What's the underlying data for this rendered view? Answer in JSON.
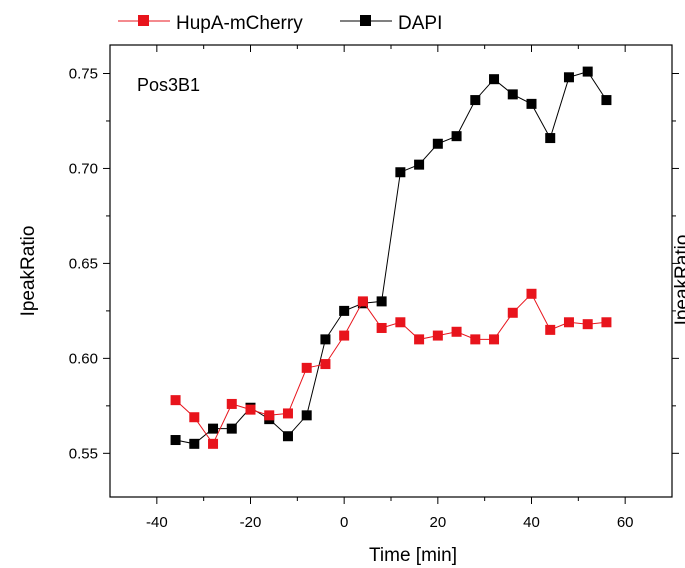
{
  "chart_data": {
    "type": "line",
    "title": "",
    "annotation": "Pos3B1",
    "xlabel": "Time [min]",
    "ylabel": "IpeakRatio",
    "right_ylabel_partial": "IpeakRatio",
    "xlim": [
      -50,
      70
    ],
    "ylim": [
      0.527,
      0.765
    ],
    "xticks": [
      -40,
      -20,
      0,
      20,
      40,
      60
    ],
    "xtick_labels": [
      "-40",
      "-20",
      "0",
      "20",
      "40",
      "60"
    ],
    "yticks": [
      0.55,
      0.6,
      0.65,
      0.7,
      0.75
    ],
    "ytick_labels": [
      "0.55",
      "0.60",
      "0.65",
      "0.70",
      "0.75"
    ],
    "grid": false,
    "legend_position": "top",
    "x": [
      -36,
      -32,
      -28,
      -24,
      -20,
      -16,
      -12,
      -8,
      -4,
      0,
      4,
      8,
      12,
      16,
      20,
      24,
      28,
      32,
      36,
      40,
      44,
      48,
      52,
      56
    ],
    "series": [
      {
        "name": "HupA-mCherry",
        "color": "#e8141c",
        "marker": "square",
        "values": [
          0.578,
          0.569,
          0.555,
          0.576,
          0.573,
          0.57,
          0.571,
          0.595,
          0.597,
          0.612,
          0.63,
          0.616,
          0.619,
          0.61,
          0.612,
          0.614,
          0.61,
          0.61,
          0.624,
          0.634,
          0.615,
          0.619,
          0.618,
          0.619
        ]
      },
      {
        "name": "DAPI",
        "color": "#000000",
        "marker": "square",
        "values": [
          0.557,
          0.555,
          0.563,
          0.563,
          0.574,
          0.568,
          0.559,
          0.57,
          0.61,
          0.625,
          0.629,
          0.63,
          0.698,
          0.702,
          0.713,
          0.717,
          0.736,
          0.747,
          0.739,
          0.734,
          0.716,
          0.748,
          0.751,
          0.736
        ]
      }
    ]
  }
}
